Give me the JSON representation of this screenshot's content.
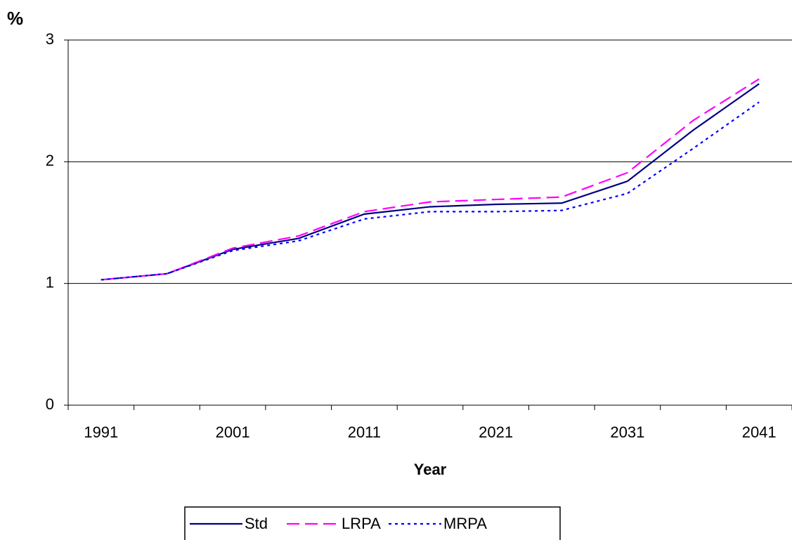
{
  "chart_data": {
    "type": "line",
    "title": "%",
    "x_label": "Year",
    "categories": [
      "1991",
      null,
      "2001",
      null,
      "2011",
      null,
      "2021",
      null,
      "2031",
      null,
      "2041"
    ],
    "series": [
      {
        "name": "Std",
        "color": "#000080",
        "style": "solid",
        "values": [
          1.03,
          1.08,
          1.28,
          1.37,
          1.57,
          1.63,
          1.65,
          1.66,
          1.84,
          2.26,
          2.64
        ]
      },
      {
        "name": "LRPA",
        "color": "#ff00ff",
        "style": "dashed",
        "values": [
          1.03,
          1.08,
          1.29,
          1.39,
          1.59,
          1.67,
          1.69,
          1.71,
          1.91,
          2.34,
          2.68
        ]
      },
      {
        "name": "MRPA",
        "color": "#0000ff",
        "style": "dotted",
        "values": [
          1.03,
          1.08,
          1.27,
          1.35,
          1.53,
          1.59,
          1.59,
          1.6,
          1.74,
          2.11,
          2.49
        ]
      }
    ],
    "ylim": [
      0,
      3
    ],
    "yticks": [
      0,
      1,
      2,
      3
    ],
    "grid": true,
    "legend": "bottom"
  }
}
